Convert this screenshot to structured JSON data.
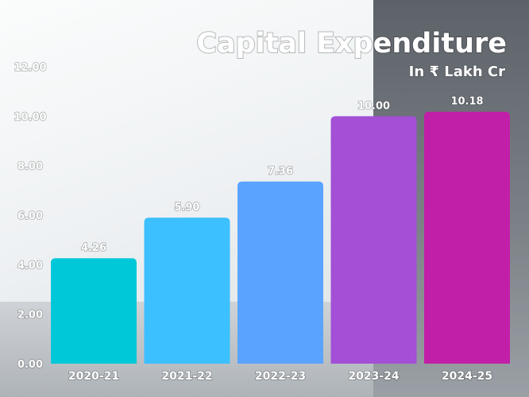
{
  "chart_data": {
    "type": "bar",
    "title": "Capital Expenditure",
    "subtitle": "In ₹ Lakh Cr",
    "categories": [
      "2020-21",
      "2021-22",
      "2022-23",
      "2023-24",
      "2024-25"
    ],
    "values": [
      4.26,
      5.9,
      7.36,
      10.0,
      10.18
    ],
    "value_labels": [
      "4.26",
      "5.90",
      "7.36",
      "10.00",
      "10.18"
    ],
    "yticks": [
      "0.00",
      "2.00",
      "4.00",
      "6.00",
      "8.00",
      "10.00",
      "12.00"
    ],
    "ylim": [
      0,
      12
    ],
    "bar_colors": [
      "#00c8d8",
      "#3cc0ff",
      "#5aa4ff",
      "#a34fd6",
      "#c21fa8"
    ],
    "grid": false,
    "legend": "none"
  }
}
